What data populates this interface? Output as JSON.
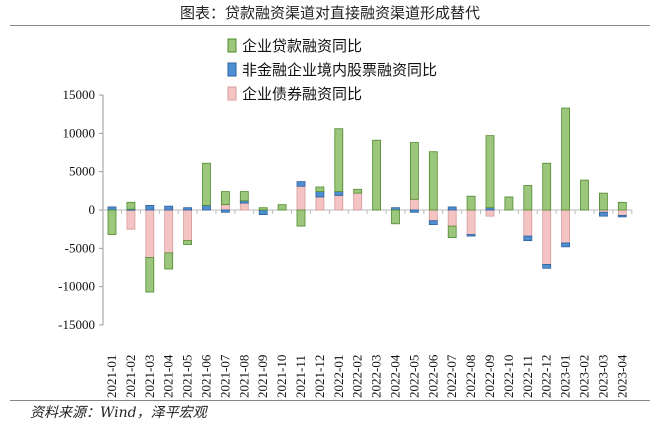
{
  "title": "图表：贷款融资渠道对直接融资渠道形成替代",
  "source": "资料来源：Wind，泽平宏观",
  "chart_data": {
    "type": "bar",
    "stacked": true,
    "categories": [
      "2021-01",
      "2021-02",
      "2021-03",
      "2021-04",
      "2021-05",
      "2021-06",
      "2021-07",
      "2021-08",
      "2021-09",
      "2021-10",
      "2021-11",
      "2021-12",
      "2022-01",
      "2022-02",
      "2022-03",
      "2022-04",
      "2022-05",
      "2022-06",
      "2022-07",
      "2022-08",
      "2022-09",
      "2022-10",
      "2022-11",
      "2022-12",
      "2023-01",
      "2023-02",
      "2023-03",
      "2023-04"
    ],
    "series": [
      {
        "name": "企业贷款融资同比",
        "color": "#9bc67c",
        "edge": "#4e8a2e",
        "values": [
          -3200,
          900,
          -4500,
          -2100,
          -500,
          5500,
          1700,
          1200,
          300,
          700,
          -2100,
          600,
          8200,
          500,
          9100,
          -1800,
          7400,
          7600,
          -1500,
          1800,
          9400,
          1700,
          3200,
          6100,
          13300,
          3900,
          2200,
          1000
        ]
      },
      {
        "name": "非金融企业境内股票融资同比",
        "color": "#4f8fd0",
        "edge": "#2a5f9e",
        "values": [
          400,
          100,
          600,
          500,
          300,
          600,
          -300,
          300,
          -600,
          0,
          600,
          700,
          500,
          0,
          0,
          300,
          -300,
          -500,
          400,
          -200,
          300,
          0,
          -600,
          -500,
          -500,
          0,
          -500,
          -200
        ]
      },
      {
        "name": "企业债券融资同比",
        "color": "#f4c4c4",
        "edge": "#d89a9a",
        "values": [
          0,
          -2500,
          -6200,
          -5600,
          -4000,
          0,
          700,
          900,
          0,
          0,
          3100,
          1700,
          1900,
          2200,
          0,
          0,
          1400,
          -1400,
          -2100,
          -3200,
          -800,
          0,
          -3400,
          -7100,
          -4300,
          0,
          -300,
          -700
        ]
      }
    ],
    "yticks": [
      15000,
      10000,
      5000,
      0,
      -5000,
      -10000,
      -15000
    ],
    "ylim": [
      -15000,
      15000
    ],
    "grid": false,
    "legend": "top-center"
  }
}
